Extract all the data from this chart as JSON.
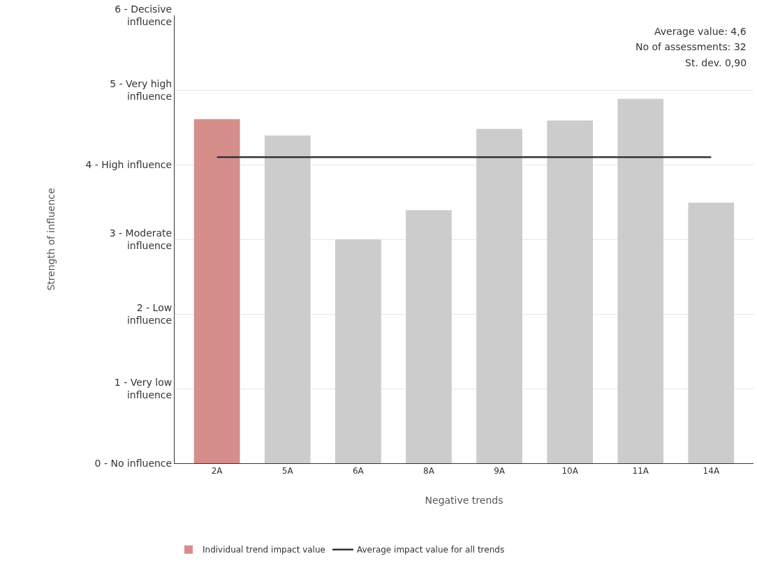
{
  "chart_data": {
    "type": "bar",
    "xlabel": "Negative trends",
    "ylabel": "Strength of influence",
    "categories": [
      "2A",
      "5A",
      "6A",
      "8A",
      "9A",
      "10A",
      "11A",
      "14A"
    ],
    "series": [
      {
        "name": "Individual trend impact value",
        "colors": [
          "#d68e8b",
          "#cccccc",
          "#cccccc",
          "#cccccc",
          "#cccccc",
          "#cccccc",
          "#cccccc",
          "#cccccc"
        ],
        "values": [
          4.61,
          4.39,
          3.0,
          3.39,
          4.48,
          4.59,
          4.88,
          3.49
        ]
      },
      {
        "name": "Average impact value for all trends",
        "type": "line",
        "color": "#333333",
        "values": [
          4.1,
          4.1,
          4.1,
          4.1,
          4.1,
          4.1,
          4.1,
          4.1
        ]
      }
    ],
    "ylim": [
      0,
      6
    ],
    "yticks": [
      {
        "value": 0,
        "label": "0 - No influence"
      },
      {
        "value": 1,
        "label": "1 - Very low\ninfluence"
      },
      {
        "value": 2,
        "label": "2 - Low\ninfluence"
      },
      {
        "value": 3,
        "label": "3 - Moderate\ninfluence"
      },
      {
        "value": 4,
        "label": "4 - High influence"
      },
      {
        "value": 5,
        "label": "5 - Very high\ninfluence"
      },
      {
        "value": 6,
        "label": "6 - Decisive\ninfluence"
      }
    ],
    "annotations": [
      "Average value: 4,6",
      "No of assessments: 32",
      "St. dev. 0,90"
    ],
    "grid": "y",
    "legend": "bottom"
  }
}
